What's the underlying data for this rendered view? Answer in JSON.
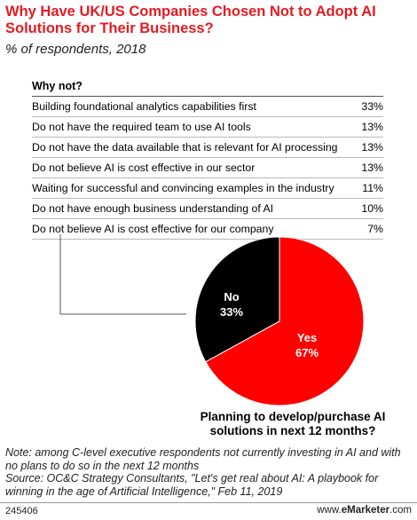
{
  "title": "Why Have UK/US Companies Chosen Not to Adopt AI Solutions for Their Business?",
  "subtitle": "% of respondents, 2018",
  "table_header": "Why not?",
  "rows": [
    {
      "label": "Building foundational analytics capabilities first",
      "value": "33%"
    },
    {
      "label": "Do not have the required team to use AI tools",
      "value": "13%"
    },
    {
      "label": "Do not have the data available that is relevant for AI processing",
      "value": "13%"
    },
    {
      "label": "Do not believe AI is cost effective in our sector",
      "value": "13%"
    },
    {
      "label": "Waiting for successful and convincing examples in the industry",
      "value": "11%"
    },
    {
      "label": "Do not have enough business understanding of AI",
      "value": "10%"
    },
    {
      "label": "Do not believe AI is cost effective for our company",
      "value": "7%"
    }
  ],
  "pie_question": "Planning to develop/purchase AI solutions in next 12 months?",
  "note": "Note: among C-level executive respondents not currently investing in AI and with no plans to do so in the next 12 months",
  "source": "Source: OC&C Strategy Consultants, \"Let's get real about AI: A playbook for winning in the age of Artificial Intelligence,\" Feb 11, 2019",
  "footer_id": "245406",
  "footer_brand_prefix": "www.",
  "footer_brand_name": "eMarketer",
  "footer_brand_suffix": ".com",
  "colors": {
    "title": "#e31b23",
    "yes": "#ff0000",
    "no": "#000000"
  },
  "chart_data": {
    "type": "pie",
    "slices": [
      {
        "label": "Yes",
        "value": 67,
        "value_label": "67%",
        "color": "#ff0000"
      },
      {
        "label": "No",
        "value": 33,
        "value_label": "33%",
        "color": "#000000"
      }
    ]
  }
}
